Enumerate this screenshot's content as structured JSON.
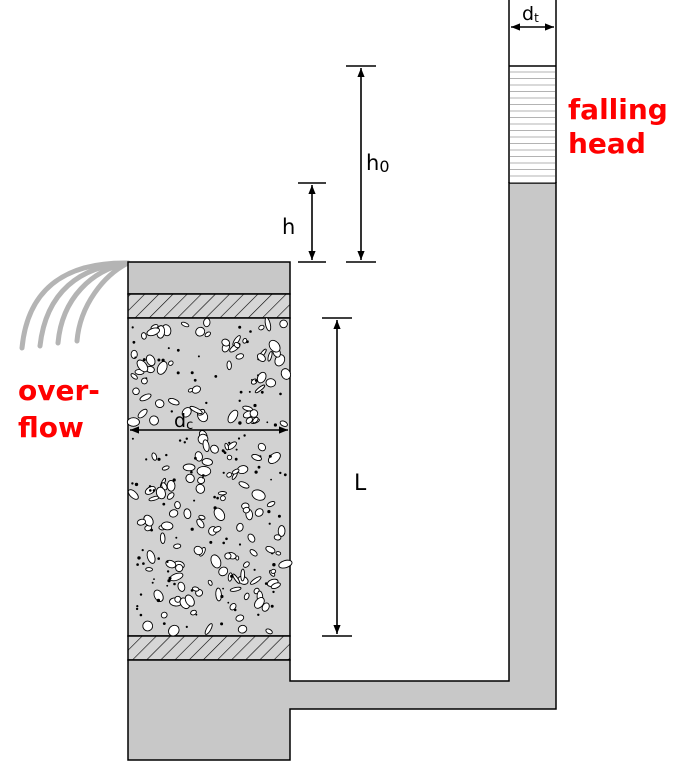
{
  "labels": {
    "d_t_main": "d",
    "d_t_sub": "t",
    "h0_main": "h",
    "h0_sub": "0",
    "h": "h",
    "L": "L",
    "d_c_main": "d",
    "d_c_sub": "c",
    "falling_line1": "falling",
    "falling_line2": "head",
    "overflow_line1": "over-",
    "overflow_line2": "flow"
  },
  "colors": {
    "label_red": "#ff0000",
    "fill_gray": "#c8c8c8",
    "stroke": "#000000"
  }
}
